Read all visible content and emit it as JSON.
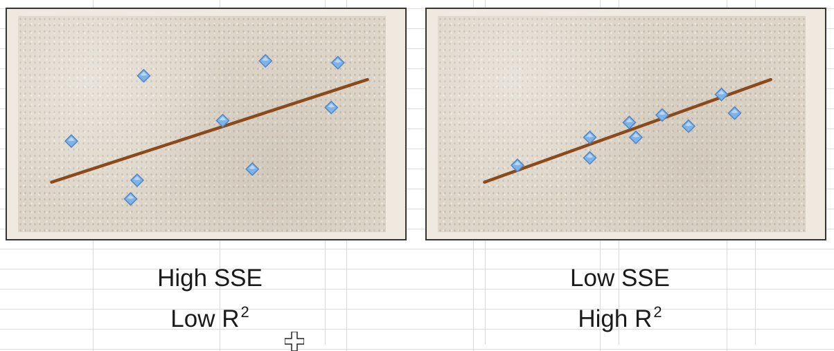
{
  "colors": {
    "point_fill": "#7fb2e6",
    "point_stroke": "#4f86c6",
    "line": "#8b4a1c",
    "frame": "#333333",
    "plot_bg": "#ddd5c8"
  },
  "captions": [
    {
      "line1": "High SSE",
      "line2_base": "Low R",
      "line2_sup": "2"
    },
    {
      "line1": "Low SSE",
      "line2_base": "High R",
      "line2_sup": "2"
    }
  ],
  "cursor_icon": "plus-cursor-icon",
  "chart_data": [
    {
      "type": "scatter",
      "xlim": [
        0,
        10
      ],
      "ylim": [
        0,
        10
      ],
      "grid": false,
      "points": [
        {
          "x": 0.8,
          "y": 4.4
        },
        {
          "x": 3.0,
          "y": 7.9
        },
        {
          "x": 2.8,
          "y": 2.3
        },
        {
          "x": 2.6,
          "y": 1.3
        },
        {
          "x": 5.4,
          "y": 5.5
        },
        {
          "x": 6.3,
          "y": 2.9
        },
        {
          "x": 6.7,
          "y": 8.7
        },
        {
          "x": 8.7,
          "y": 6.2
        },
        {
          "x": 8.9,
          "y": 8.6
        }
      ],
      "fit_line": [
        {
          "x": 0.2,
          "y": 2.2
        },
        {
          "x": 9.8,
          "y": 7.7
        }
      ]
    },
    {
      "type": "scatter",
      "xlim": [
        0,
        10
      ],
      "ylim": [
        0,
        10
      ],
      "grid": false,
      "points": [
        {
          "x": 1.6,
          "y": 3.1
        },
        {
          "x": 3.8,
          "y": 4.6
        },
        {
          "x": 3.8,
          "y": 3.5
        },
        {
          "x": 5.0,
          "y": 5.4
        },
        {
          "x": 5.2,
          "y": 4.6
        },
        {
          "x": 6.0,
          "y": 5.8
        },
        {
          "x": 6.8,
          "y": 5.2
        },
        {
          "x": 7.8,
          "y": 6.9
        },
        {
          "x": 8.2,
          "y": 5.9
        }
      ],
      "fit_line": [
        {
          "x": 0.6,
          "y": 2.2
        },
        {
          "x": 9.3,
          "y": 7.7
        }
      ]
    }
  ]
}
